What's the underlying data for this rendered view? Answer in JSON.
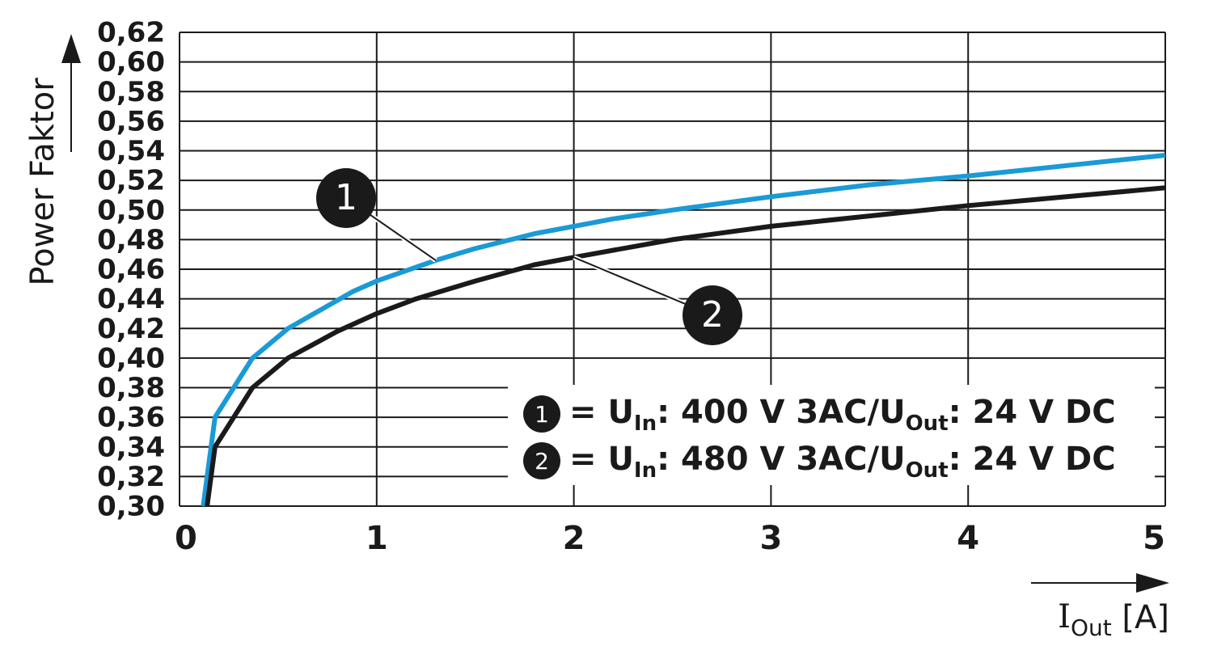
{
  "chart_data": {
    "type": "line",
    "y_label": "Power Faktor",
    "x_label_parts": [
      "I",
      "Out",
      " [A]"
    ],
    "xlim": [
      0,
      5
    ],
    "xticks": [
      0,
      1,
      2,
      3,
      4,
      5
    ],
    "ylim": [
      0.3,
      0.62
    ],
    "yticks": [
      {
        "value": 0.3,
        "label": "0,30"
      },
      {
        "value": 0.32,
        "label": "0,32"
      },
      {
        "value": 0.34,
        "label": "0,34"
      },
      {
        "value": 0.36,
        "label": "0,36"
      },
      {
        "value": 0.38,
        "label": "0,38"
      },
      {
        "value": 0.4,
        "label": "0,40"
      },
      {
        "value": 0.42,
        "label": "0,42"
      },
      {
        "value": 0.44,
        "label": "0,44"
      },
      {
        "value": 0.46,
        "label": "0,46"
      },
      {
        "value": 0.48,
        "label": "0,48"
      },
      {
        "value": 0.5,
        "label": "0,50"
      },
      {
        "value": 0.52,
        "label": "0,52"
      },
      {
        "value": 0.54,
        "label": "0,54"
      },
      {
        "value": 0.56,
        "label": "0,56"
      },
      {
        "value": 0.58,
        "label": "0,58"
      },
      {
        "value": 0.6,
        "label": "0,60"
      },
      {
        "value": 0.62,
        "label": "0,62"
      }
    ],
    "grid": true,
    "series": [
      {
        "marker": "1",
        "label_parts": [
          "= U",
          "In",
          ": 400 V 3AC/U",
          "Out",
          ": 24 V DC"
        ],
        "color": "#1a9ad6",
        "x": [
          0.12,
          0.18,
          0.37,
          0.55,
          0.88,
          1.0,
          1.3,
          1.5,
          1.8,
          2.0,
          2.2,
          2.5,
          3.0,
          3.5,
          4.0,
          4.5,
          5.0
        ],
        "values": [
          0.3,
          0.36,
          0.4,
          0.42,
          0.445,
          0.452,
          0.466,
          0.474,
          0.484,
          0.489,
          0.494,
          0.5,
          0.509,
          0.517,
          0.523,
          0.53,
          0.537
        ]
      },
      {
        "marker": "2",
        "label_parts": [
          "= U",
          "In",
          ": 480 V 3AC/U",
          "Out",
          ": 24 V DC"
        ],
        "color": "#1a1a1a",
        "x": [
          0.14,
          0.18,
          0.37,
          0.55,
          0.8,
          1.0,
          1.2,
          1.5,
          1.8,
          2.0,
          2.5,
          3.0,
          3.5,
          4.0,
          4.5,
          5.0
        ],
        "values": [
          0.3,
          0.34,
          0.38,
          0.4,
          0.418,
          0.43,
          0.44,
          0.452,
          0.463,
          0.468,
          0.48,
          0.489,
          0.496,
          0.503,
          0.509,
          0.515
        ]
      }
    ]
  }
}
